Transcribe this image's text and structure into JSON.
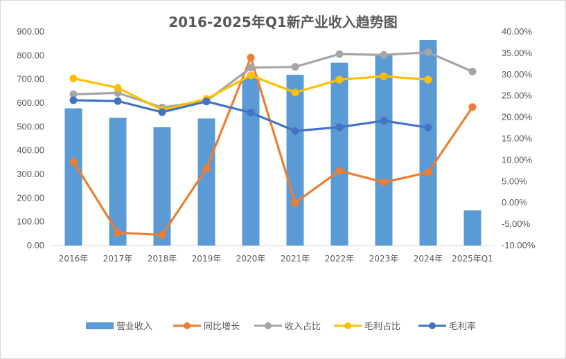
{
  "chart_data": {
    "type": "bar",
    "title": "2016-2025年Q1新产业收入趋势图",
    "categories": [
      "2016年",
      "2017年",
      "2018年",
      "2019年",
      "2020年",
      "2021年",
      "2022年",
      "2023年",
      "2024年",
      "2025年Q1"
    ],
    "y_left": {
      "ylim": [
        0,
        900
      ],
      "ticks": [
        "0.00",
        "100.00",
        "200.00",
        "300.00",
        "400.00",
        "500.00",
        "600.00",
        "700.00",
        "800.00",
        "900.00"
      ]
    },
    "y_right": {
      "ylim": [
        -10,
        40
      ],
      "ticks": [
        "-10.00%",
        "-5.00%",
        "0.00%",
        "5.00%",
        "10.00%",
        "15.00%",
        "20.00%",
        "25.00%",
        "30.00%",
        "35.00%",
        "40.00%"
      ]
    },
    "series": [
      {
        "name": "营业收入",
        "type": "bar",
        "axis": "left",
        "color": "#5b9bd5",
        "values": [
          578,
          538,
          498,
          535,
          707,
          719,
          770,
          801,
          865,
          148
        ]
      },
      {
        "name": "同比增长",
        "type": "line",
        "axis": "right",
        "color": "#ed7d31",
        "values": [
          9.6,
          -7.0,
          -7.5,
          8.0,
          34.0,
          0.0,
          7.5,
          4.8,
          7.1,
          22.4
        ]
      },
      {
        "name": "收入占比",
        "type": "line",
        "axis": "right",
        "color": "#a5a5a5",
        "values": [
          25.4,
          25.7,
          22.3,
          23.8,
          31.6,
          31.8,
          34.8,
          34.6,
          35.2,
          30.7
        ]
      },
      {
        "name": "毛利占比",
        "type": "line",
        "axis": "right",
        "color": "#ffc000",
        "values": [
          29.1,
          26.9,
          21.7,
          24.3,
          29.8,
          25.8,
          28.8,
          29.6,
          28.8,
          null
        ]
      },
      {
        "name": "毛利率",
        "type": "line",
        "axis": "right",
        "color": "#4472c4",
        "values": [
          24.0,
          23.8,
          21.2,
          23.7,
          21.1,
          16.8,
          17.7,
          19.2,
          17.6,
          null
        ]
      }
    ],
    "grid": false,
    "legend_position": "bottom"
  }
}
